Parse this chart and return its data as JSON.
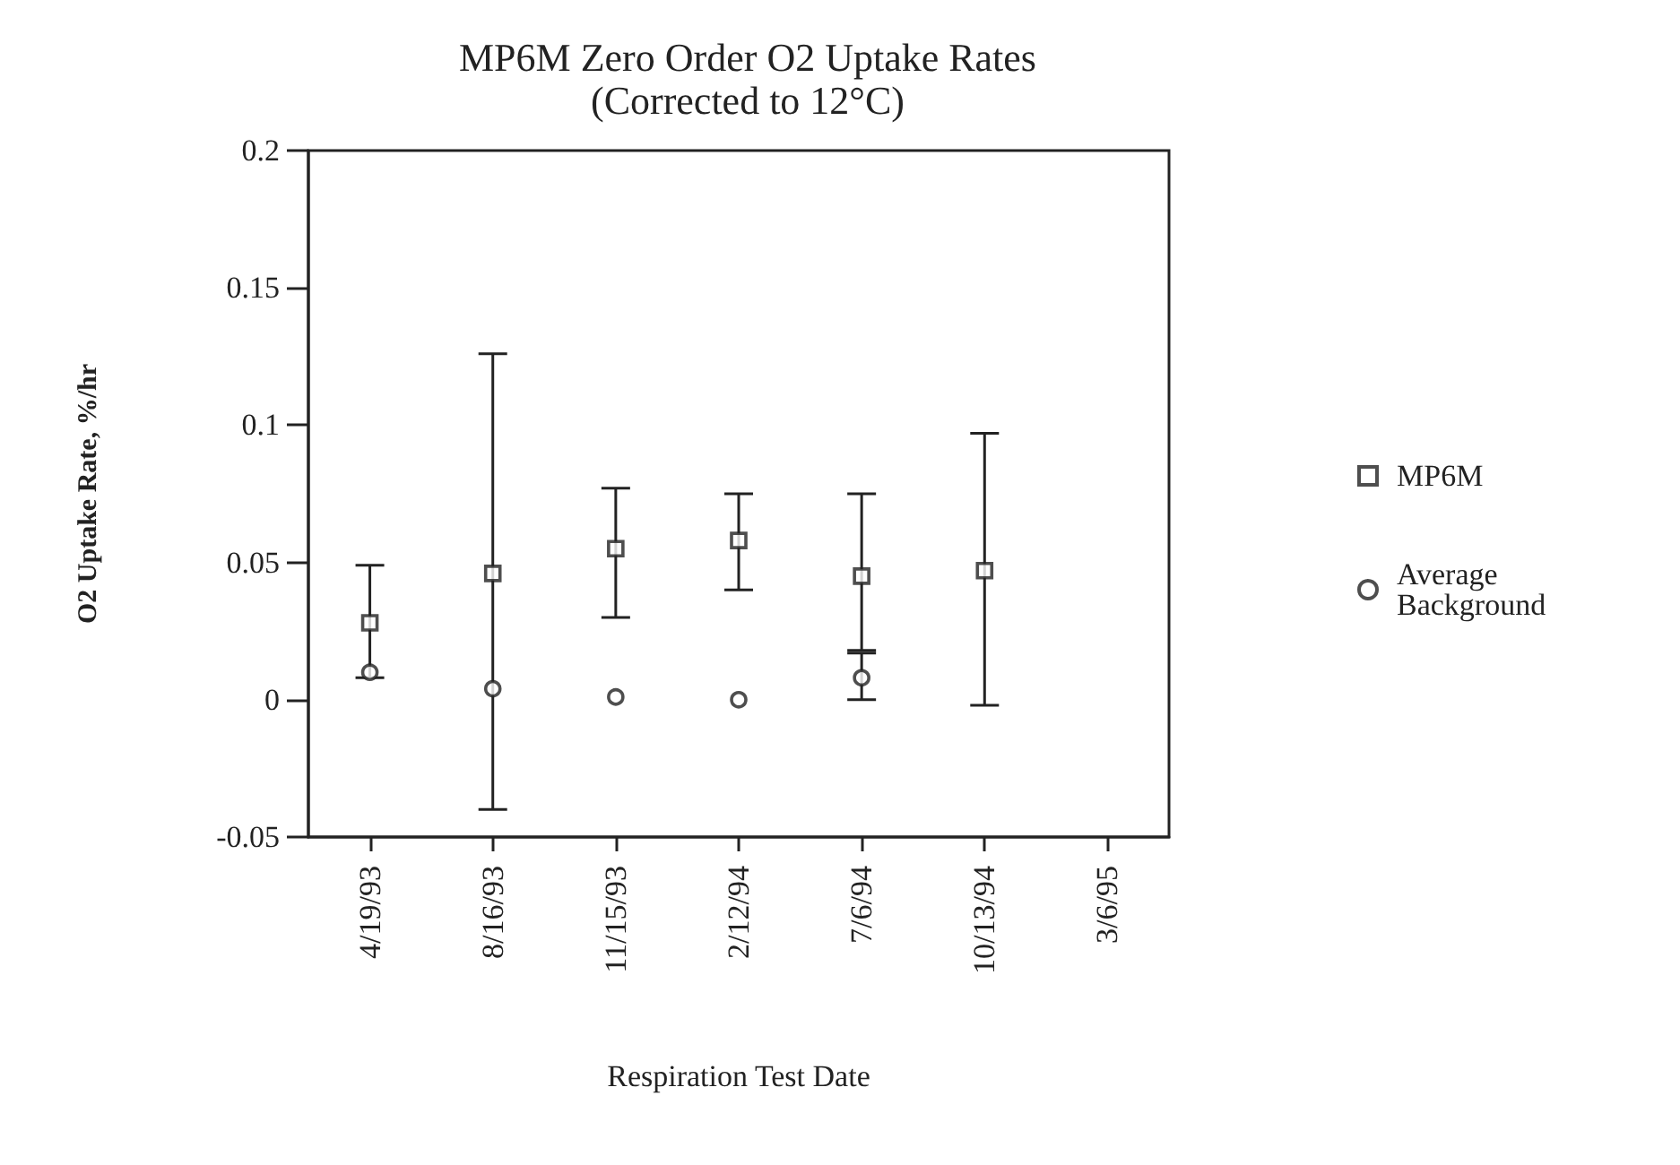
{
  "chart_data": {
    "type": "scatter",
    "title": "MP6M Zero Order O2 Uptake Rates",
    "subtitle": "(Corrected to 12°C)",
    "xlabel": "Respiration Test Date",
    "ylabel": "O2 Uptake Rate, %/hr",
    "categories": [
      "4/19/93",
      "8/16/93",
      "11/15/93",
      "2/12/94",
      "7/6/94",
      "10/13/94",
      "3/6/95"
    ],
    "series": [
      {
        "name": "MP6M",
        "color": "#222222",
        "marker": "square",
        "values": [
          0.028,
          0.046,
          0.055,
          0.058,
          0.045,
          0.047,
          null
        ],
        "errors": [
          [
            0.008,
            0.049
          ],
          [
            -0.04,
            0.126
          ],
          [
            0.03,
            0.077
          ],
          [
            0.04,
            0.075
          ],
          [
            0.018,
            0.075
          ],
          [
            -0.002,
            0.097
          ],
          null
        ]
      },
      {
        "name": "Average Background",
        "color": "#222222",
        "marker": "circle",
        "values": [
          0.01,
          0.004,
          0.001,
          0.0,
          0.008,
          null,
          null
        ],
        "errors": [
          null,
          null,
          null,
          null,
          [
            0.0,
            0.017
          ],
          null,
          null
        ]
      }
    ],
    "ylim": [
      -0.05,
      0.2
    ],
    "yticks": [
      -0.05,
      0,
      0.05,
      0.1,
      0.15,
      0.2
    ],
    "grid": false,
    "legend": "right"
  }
}
